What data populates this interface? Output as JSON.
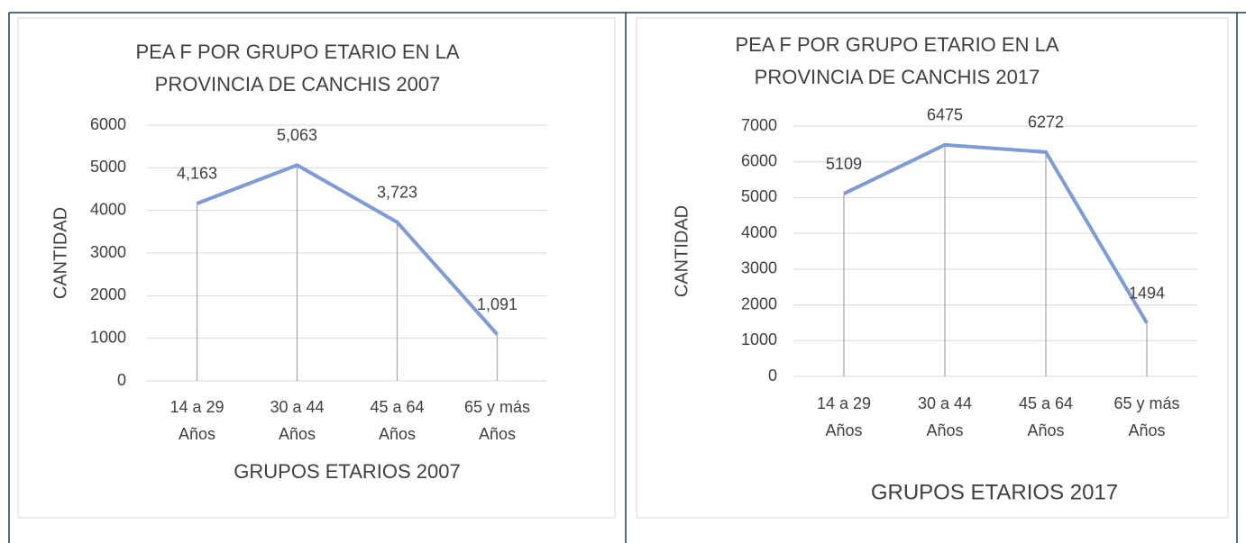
{
  "chart_data": [
    {
      "type": "line",
      "title": "PEA F POR GRUPO ETARIO EN LA PROVINCIA DE CANCHIS 2007",
      "x_label": "GRUPOS ETARIOS 2007",
      "y_label": "CANTIDAD",
      "categories": [
        "14 a 29 Años",
        "30 a 44 Años",
        "45 a 64 Años",
        "65 y más Años"
      ],
      "series": [
        {
          "name": "PEA F",
          "color": "#7f9bd5",
          "values": [
            4163,
            5063,
            3723,
            1091
          ],
          "value_labels": [
            "4,163",
            "5,063",
            "3,723",
            "1,091"
          ]
        }
      ],
      "ylim": [
        0,
        6000
      ],
      "yticks": [
        0,
        1000,
        2000,
        3000,
        4000,
        5000,
        6000
      ],
      "grid": true
    },
    {
      "type": "line",
      "title": "PEA F POR GRUPO ETARIO EN LA PROVINCIA DE CANCHIS 2017",
      "x_label": "GRUPOS ETARIOS 2017",
      "y_label": "CANTIDAD",
      "categories": [
        "14 a 29 Años",
        "30 a 44 Años",
        "45 a 64 Años",
        "65 y más Años"
      ],
      "series": [
        {
          "name": "PEA F",
          "color": "#7f9bd5",
          "values": [
            5109,
            6475,
            6272,
            1494
          ]
        }
      ],
      "ylim": [
        0,
        7000
      ],
      "yticks": [
        0,
        1000,
        2000,
        3000,
        4000,
        5000,
        6000,
        7000
      ],
      "grid": true
    }
  ]
}
